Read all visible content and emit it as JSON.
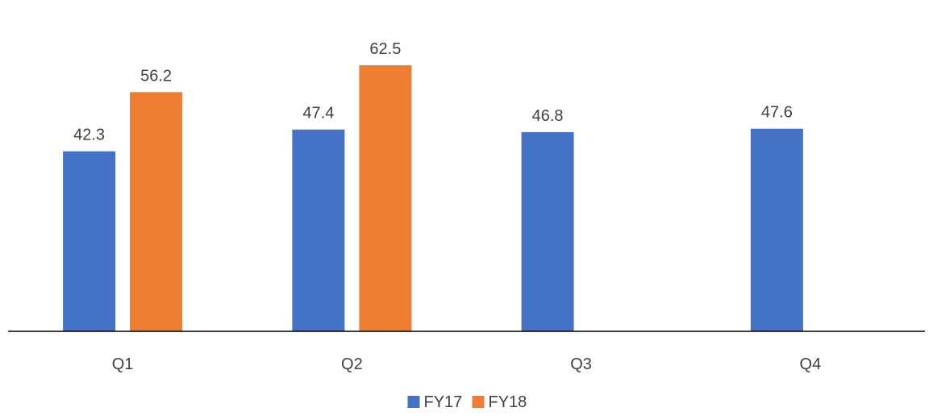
{
  "chart_data": {
    "type": "bar",
    "categories": [
      "Q1",
      "Q2",
      "Q3",
      "Q4"
    ],
    "series": [
      {
        "name": "FY17",
        "values": [
          42.3,
          47.4,
          46.8,
          47.6
        ],
        "color": "#4472C4"
      },
      {
        "name": "FY18",
        "values": [
          56.2,
          62.5,
          null,
          null
        ],
        "color": "#ED7D31"
      }
    ],
    "title": "",
    "xlabel": "",
    "ylabel": "",
    "ylim": [
      0,
      70
    ],
    "grid": false,
    "data_labels": true,
    "legend": {
      "position": "bottom"
    },
    "axis_color": "#000000",
    "text_color": "#404040"
  }
}
